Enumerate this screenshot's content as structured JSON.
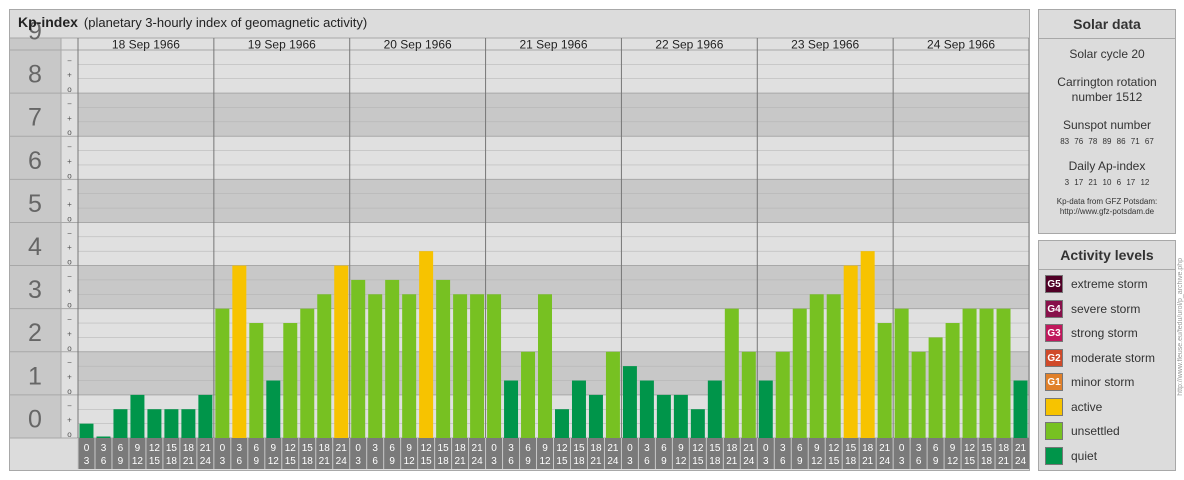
{
  "header": {
    "title": "Kp-index",
    "subtitle": "(planetary 3-hourly index of geomagnetic activity)"
  },
  "chart_data": {
    "type": "bar",
    "title": "Kp-index",
    "subtitle": "(planetary 3-hourly index of geomagnetic activity)",
    "ylim": [
      0,
      9
    ],
    "y_ticks": [
      "0",
      "1",
      "2",
      "3",
      "4",
      "5",
      "6",
      "7",
      "8",
      "9"
    ],
    "y_minor_labels": [
      "o",
      "+",
      "−"
    ],
    "days": [
      "18 Sep 1966",
      "19 Sep 1966",
      "20 Sep 1966",
      "21 Sep 1966",
      "22 Sep 1966",
      "23 Sep 1966",
      "24 Sep 1966"
    ],
    "interval_start": [
      "0",
      "3",
      "6",
      "9",
      "12",
      "15",
      "18",
      "21"
    ],
    "interval_end": [
      "3",
      "6",
      "9",
      "12",
      "15",
      "18",
      "21",
      "24"
    ],
    "values": [
      [
        0.333,
        0,
        0.667,
        1,
        0.667,
        0.667,
        0.667,
        1
      ],
      [
        3,
        4,
        2.667,
        1.333,
        2.667,
        3,
        3.333,
        4
      ],
      [
        3.667,
        3.333,
        3.667,
        3.333,
        4.333,
        3.667,
        3.333,
        3.333
      ],
      [
        3.333,
        1.333,
        2,
        3.333,
        0.667,
        1.333,
        1,
        2
      ],
      [
        1.667,
        1.333,
        1,
        1,
        0.667,
        1.333,
        3,
        2
      ],
      [
        1.333,
        2,
        3,
        3.333,
        3.333,
        4,
        4.333,
        2.667
      ],
      [
        3,
        2,
        2.333,
        2.667,
        3,
        3,
        3,
        1.333
      ]
    ],
    "thresholds": {
      "quiet_below": 2,
      "unsettled_below": 4,
      "active_below": 5
    },
    "colors": {
      "quiet": "#00954a",
      "unsettled": "#77c122",
      "active": "#f7c300",
      "minor": "#e0802a",
      "moderate": "#d04a2a",
      "strong": "#c0185c",
      "severe": "#88104a",
      "extreme": "#500026"
    }
  },
  "solar": {
    "title": "Solar data",
    "cycle": "Solar cycle 20",
    "carrington_1": "Carrington rotation",
    "carrington_2": "number 1512",
    "sunspot_label": "Sunspot number",
    "sunspot_values": "83 76 78 89 86 71 67",
    "ap_label": "Daily Ap-index",
    "ap_values": "3 17 21 10 6 17 12",
    "source_1": "Kp-data from GFZ Potsdam:",
    "source_2": "http://www.gfz-potsdam.de"
  },
  "activity": {
    "title": "Activity levels",
    "items": [
      {
        "badge": "G5",
        "label": "extreme storm",
        "color": "#500026"
      },
      {
        "badge": "G4",
        "label": "severe storm",
        "color": "#88104a"
      },
      {
        "badge": "G3",
        "label": "strong storm",
        "color": "#c0185c"
      },
      {
        "badge": "G2",
        "label": "moderate storm",
        "color": "#d04a2a"
      },
      {
        "badge": "G1",
        "label": "minor storm",
        "color": "#e0802a"
      },
      {
        "badge": "",
        "label": "active",
        "color": "#f7c300"
      },
      {
        "badge": "",
        "label": "unsettled",
        "color": "#77c122"
      },
      {
        "badge": "",
        "label": "quiet",
        "color": "#00954a"
      }
    ]
  },
  "credit": "http://www.fleuse.eu/fedu/urol/p_archive.php"
}
